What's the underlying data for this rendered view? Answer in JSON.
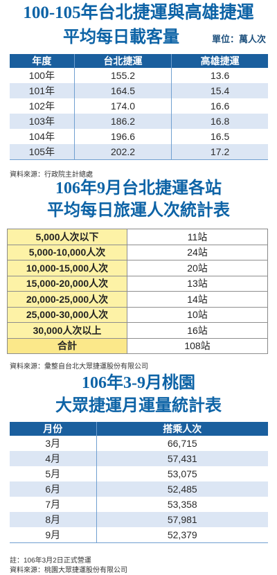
{
  "section1": {
    "title_line1": "100-105年台北捷運與高雄捷運",
    "title_line2": "平均每日載客量",
    "unit": "單位：萬人次",
    "headers": [
      "年度",
      "台北捷運",
      "高雄捷運"
    ],
    "rows": [
      [
        "100年",
        "155.2",
        "13.6"
      ],
      [
        "101年",
        "164.5",
        "15.4"
      ],
      [
        "102年",
        "174.0",
        "16.6"
      ],
      [
        "103年",
        "186.2",
        "16.8"
      ],
      [
        "104年",
        "196.6",
        "16.5"
      ],
      [
        "105年",
        "202.2",
        "17.2"
      ]
    ],
    "source": "資料來源：行政院主計總處"
  },
  "section2": {
    "title_line1": "106年9月台北捷運各站",
    "title_line2": "平均每日旅運人次統計表",
    "rows": [
      [
        "5,000人次以下",
        "11站"
      ],
      [
        "5,000-10,000人次",
        "24站"
      ],
      [
        "10,000-15,000人次",
        "20站"
      ],
      [
        "15,000-20,000人次",
        "13站"
      ],
      [
        "20,000-25,000人次",
        "14站"
      ],
      [
        "25,000-30,000人次",
        "10站"
      ],
      [
        "30,000人次以上",
        "16站"
      ]
    ],
    "total_label": "合計",
    "total_value": "108站",
    "source": "資料來源：彙整自台北大眾捷運股份有限公司"
  },
  "section3": {
    "title_line1": "106年3-9月桃園",
    "title_line2": "大眾捷運月運量統計表",
    "headers": [
      "月份",
      "搭乘人次"
    ],
    "rows": [
      [
        "3月",
        "66,715"
      ],
      [
        "4月",
        "57,431"
      ],
      [
        "5月",
        "53,075"
      ],
      [
        "6月",
        "52,485"
      ],
      [
        "7月",
        "53,358"
      ],
      [
        "8月",
        "57,981"
      ],
      [
        "9月",
        "52,379"
      ]
    ],
    "note": "註：106年3月2日正式營運",
    "source": "資料來源：桃園大眾捷運股份有限公司"
  }
}
